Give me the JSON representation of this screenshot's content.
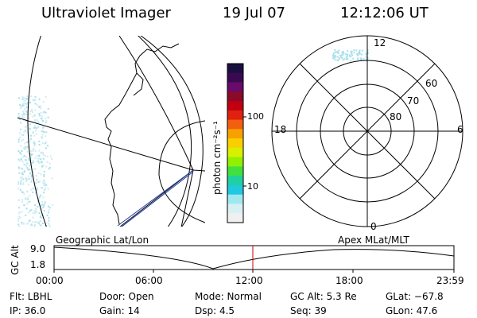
{
  "header": {
    "instrument": "Ultraviolet Imager",
    "date": "19 Jul 07",
    "time": "12:12:06 UT"
  },
  "colorbar": {
    "unit_label": "photon cm⁻²s⁻¹",
    "tick_labels": [
      "100",
      "10"
    ],
    "colors": [
      "#1a1040",
      "#3a0a50",
      "#6a0a6a",
      "#8a0a2a",
      "#c00010",
      "#e02010",
      "#f06010",
      "#f8a000",
      "#f8d000",
      "#d8f000",
      "#90f000",
      "#40e040",
      "#20d0a0",
      "#20c8e0",
      "#a0e8f0",
      "#d8f0f4",
      "#f0f0f0"
    ]
  },
  "panels": {
    "left_label": "Geographic Lat/Lon",
    "right_label": "Apex  MLat/MLT"
  },
  "polar": {
    "mlt_labels": {
      "top": "12",
      "left": "18",
      "right": "6",
      "bottom": "0"
    },
    "mlat_labels": [
      "60",
      "70",
      "80"
    ]
  },
  "timeline": {
    "axis_label": "GC Alt",
    "y_ticks": [
      "9.0",
      "1.8"
    ],
    "x_ticks": [
      "00:00",
      "06:00",
      "12:00",
      "18:00",
      "23:59"
    ]
  },
  "status": {
    "flt": "Flt: LBHL",
    "door": "Door: Open",
    "mode": "Mode: Normal",
    "gc_alt": "GC Alt: 5.3 Re",
    "glat": "GLat: −67.8",
    "ip": "IP: 36.0",
    "gain": "Gain: 14",
    "dsp": "Dsp:    4.5",
    "seq": "Seq: 39",
    "glon": "GLon:  47.6"
  },
  "colors": {
    "marker": "#cc0000",
    "track": "#2040a0",
    "aurora": "#a8e0ec"
  }
}
